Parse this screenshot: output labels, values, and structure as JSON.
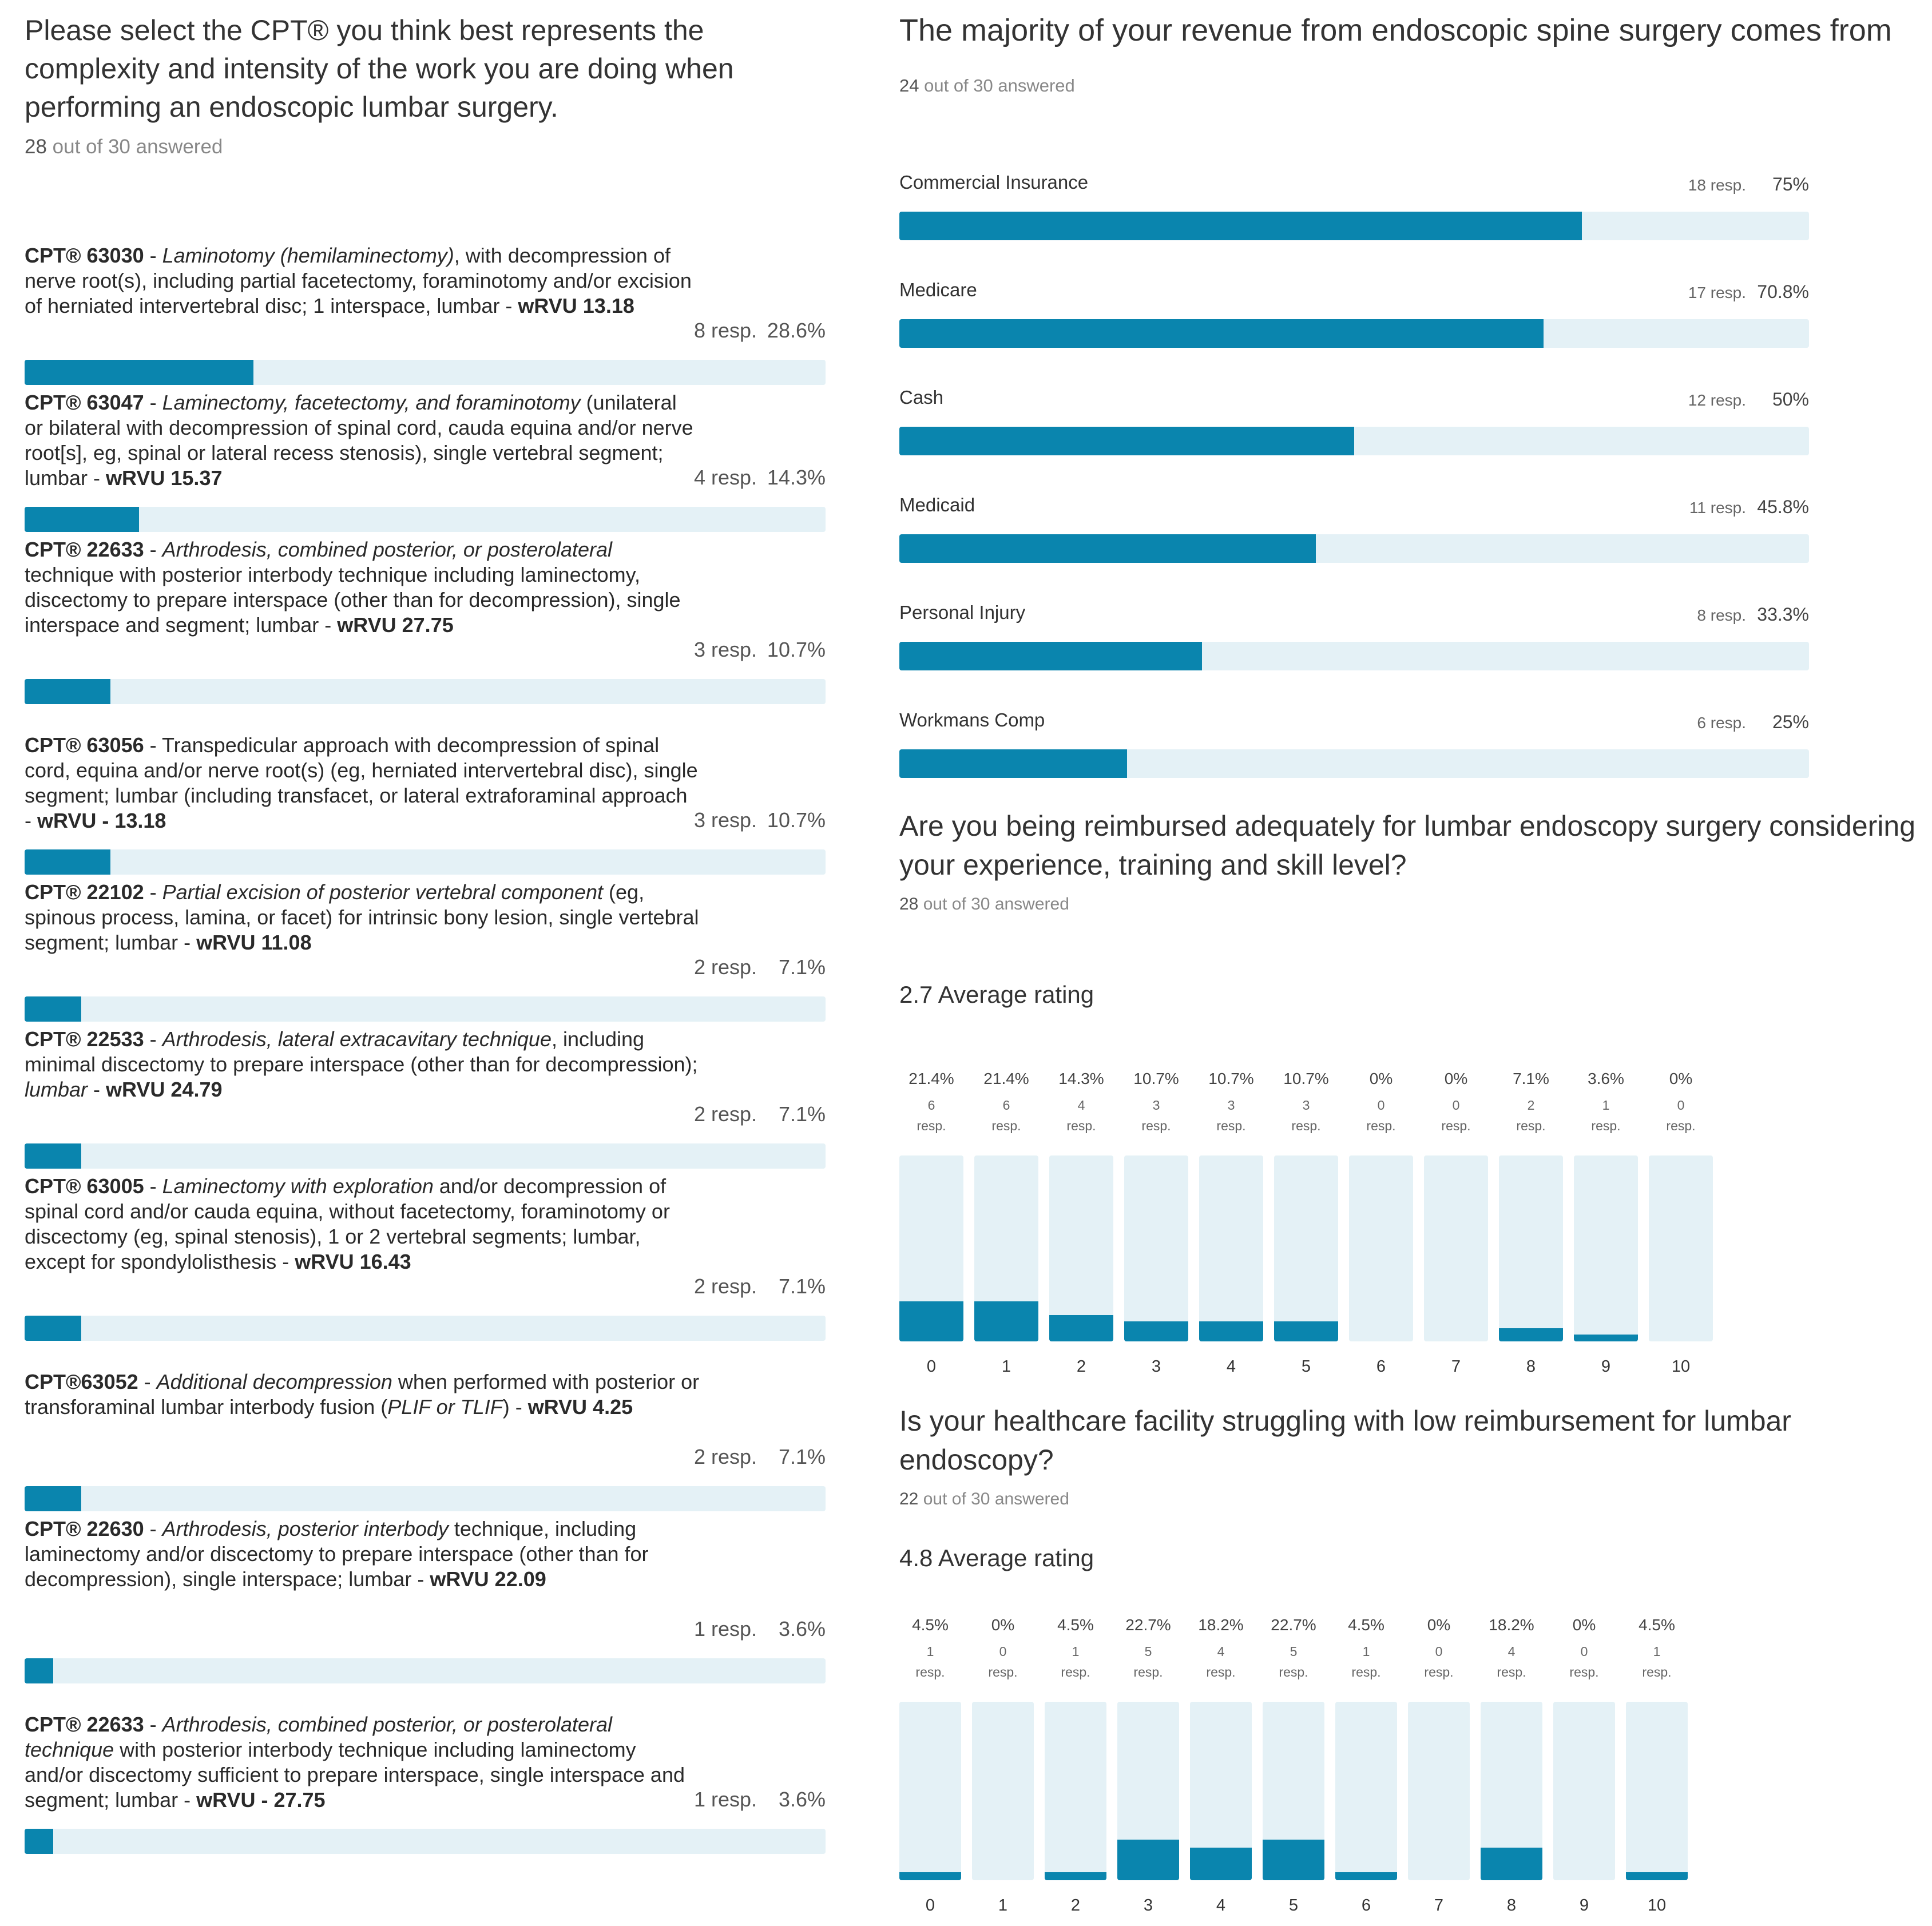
{
  "cpt_question": {
    "title": "Please select the CPT® you think best represents the complexity and intensity of the work you are doing when performing an endoscopic lumbar surgery.",
    "answered_count": "28",
    "answered_suffix": "out of 30 answered"
  },
  "revenue_question": {
    "title": "The majority of your revenue from endoscopic spine surgery comes from",
    "answered_count": "24",
    "answered_suffix": "out of 30 answered"
  },
  "reimbursed_question": {
    "title": "Are you being reimbursed adequately for lumbar endoscopy surgery considering your experience, training and skill level?",
    "answered_count": "28",
    "answered_suffix": "out of 30 answered",
    "average": "2.7 Average rating"
  },
  "facility_question": {
    "title": "Is your healthcare facility struggling with low reimbursement for lumbar endoscopy?",
    "answered_count": "22",
    "answered_suffix": "out of 30 answered",
    "average": "4.8 Average rating"
  },
  "colors": {
    "bar_fill": "#0a85ae",
    "bar_track": "#e4f1f6"
  },
  "chart_data": [
    {
      "type": "bar",
      "orientation": "horizontal",
      "title": "Please select the CPT® you think best represents the complexity and intensity of the work you are doing when performing an endoscopic lumbar surgery.",
      "items": [
        {
          "html": "<b>CPT® 63030</b> - <i>Laminotomy (hemilaminectomy)</i>, with decompression of nerve root(s), including partial facetectomy, foraminotomy and/or excision of herniated intervertebral disc; 1 interspace, lumbar - <b>wRVU 13.18</b>",
          "resp": "8 resp.",
          "pct_label": "28.6%",
          "value": 28.6
        },
        {
          "html": "<b>CPT® 63047</b> - <i>Laminectomy, facetectomy, and foraminotomy</i> (unilateral or bilateral with decompression of spinal cord, cauda equina and/or nerve root[s], eg, spinal or lateral recess stenosis), single vertebral segment; lumbar - <b>wRVU 15.37</b>",
          "resp": "4 resp.",
          "pct_label": "14.3%",
          "value": 14.3
        },
        {
          "html": "<b>CPT® 22633</b> - <i>Arthrodesis, combined posterior, or posterolateral</i> technique with posterior interbody technique including laminectomy, discectomy to prepare interspace (other than for decompression), single interspace and segment; lumbar - <b>wRVU 27.75</b>",
          "resp": "3 resp.",
          "pct_label": "10.7%",
          "value": 10.7,
          "tall": true
        },
        {
          "html": "<b>CPT® 63056</b> - Transpedicular approach with decompression of spinal cord, equina and/or nerve root(s) (eg, herniated intervertebral disc), single segment; lumbar (including transfacet, or lateral extraforaminal approach - <b>wRVU - 13.18</b>",
          "resp": "3 resp.",
          "pct_label": "10.7%",
          "value": 10.7
        },
        {
          "html": "<b>CPT® 22102</b> - <i>Partial excision of posterior vertebral component</i> (eg, spinous process, lamina, or facet) for intrinsic bony lesion, single vertebral segment; lumbar - <b>wRVU 11.08</b>",
          "resp": "2 resp.",
          "pct_label": "7.1%",
          "value": 7.1
        },
        {
          "html": "<b>CPT® 22533</b> - <i>Arthrodesis, lateral extracavitary technique</i>, including minimal discectomy to prepare interspace (other than for decompression); <i>lumbar</i> - <b>wRVU 24.79</b>",
          "resp": "2 resp.",
          "pct_label": "7.1%",
          "value": 7.1
        },
        {
          "html": "<b>CPT® 63005</b> - <i>Laminectomy with exploration</i> and/or decompression of spinal cord and/or cauda equina, without facetectomy, foraminotomy or discectomy (eg, spinal stenosis), 1 or 2 vertebral segments; lumbar, except for spondylolisthesis - <b>wRVU 16.43</b>",
          "resp": "2 resp.",
          "pct_label": "7.1%",
          "value": 7.1,
          "tall": true
        },
        {
          "html": "<b>CPT®63052</b> - <i>Additional decompression</i> when performed with posterior or transforaminal lumbar interbody fusion (<i>PLIF or TLIF</i>) - <b>wRVU 4.25</b>",
          "resp": "2 resp.",
          "pct_label": "7.1%",
          "value": 7.1
        },
        {
          "html": "<b>CPT® 22630</b> - <i>Arthrodesis, posterior interbody</i> technique, including laminectomy and/or discectomy to prepare interspace (other than for decompression), single interspace; lumbar - <b>wRVU 22.09</b>",
          "resp": "1 resp.",
          "pct_label": "3.6%",
          "value": 3.6,
          "tall": true
        },
        {
          "html": "<b>CPT® 22633</b> - <i>Arthrodesis, combined posterior, or posterolateral technique</i> with posterior interbody technique including laminectomy and/or discectomy sufficient to prepare interspace, single interspace and segment; lumbar - <b>wRVU - 27.75</b>",
          "resp": "1 resp.",
          "pct_label": "3.6%",
          "value": 3.6
        }
      ]
    },
    {
      "type": "bar",
      "orientation": "horizontal",
      "title": "The majority of your revenue from endoscopic spine surgery comes from",
      "categories": [
        "Commercial Insurance",
        "Medicare",
        "Cash",
        "Medicaid",
        "Personal Injury",
        "Workmans Comp"
      ],
      "resp": [
        "18 resp.",
        "17 resp.",
        "12 resp.",
        "11 resp.",
        "8 resp.",
        "6 resp."
      ],
      "pct_labels": [
        "75%",
        "70.8%",
        "50%",
        "45.8%",
        "33.3%",
        "25%"
      ],
      "values": [
        75,
        70.8,
        50,
        45.8,
        33.3,
        25
      ]
    },
    {
      "type": "bar",
      "orientation": "vertical",
      "title": "Are you being reimbursed adequately for lumbar endoscopy surgery considering your experience, training and skill level?",
      "categories": [
        "0",
        "1",
        "2",
        "3",
        "4",
        "5",
        "6",
        "7",
        "8",
        "9",
        "10"
      ],
      "pct_labels": [
        "21.4%",
        "21.4%",
        "14.3%",
        "10.7%",
        "10.7%",
        "10.7%",
        "0%",
        "0%",
        "7.1%",
        "3.6%",
        "0%"
      ],
      "counts": [
        "6",
        "6",
        "4",
        "3",
        "3",
        "3",
        "0",
        "0",
        "2",
        "1",
        "0"
      ],
      "resp_word": "resp.",
      "values": [
        21.4,
        21.4,
        14.3,
        10.7,
        10.7,
        10.7,
        0,
        0,
        7.1,
        3.6,
        0
      ],
      "ylim": [
        0,
        100
      ]
    },
    {
      "type": "bar",
      "orientation": "vertical",
      "title": "Is your healthcare facility struggling with low reimbursement for lumbar endoscopy?",
      "categories": [
        "0",
        "1",
        "2",
        "3",
        "4",
        "5",
        "6",
        "7",
        "8",
        "9",
        "10"
      ],
      "pct_labels": [
        "4.5%",
        "0%",
        "4.5%",
        "22.7%",
        "18.2%",
        "22.7%",
        "4.5%",
        "0%",
        "18.2%",
        "0%",
        "4.5%"
      ],
      "counts": [
        "1",
        "0",
        "1",
        "5",
        "4",
        "5",
        "1",
        "0",
        "4",
        "0",
        "1"
      ],
      "resp_word": "resp.",
      "values": [
        4.5,
        0,
        4.5,
        22.7,
        18.2,
        22.7,
        4.5,
        0,
        18.2,
        0,
        4.5
      ],
      "ylim": [
        0,
        100
      ]
    }
  ]
}
